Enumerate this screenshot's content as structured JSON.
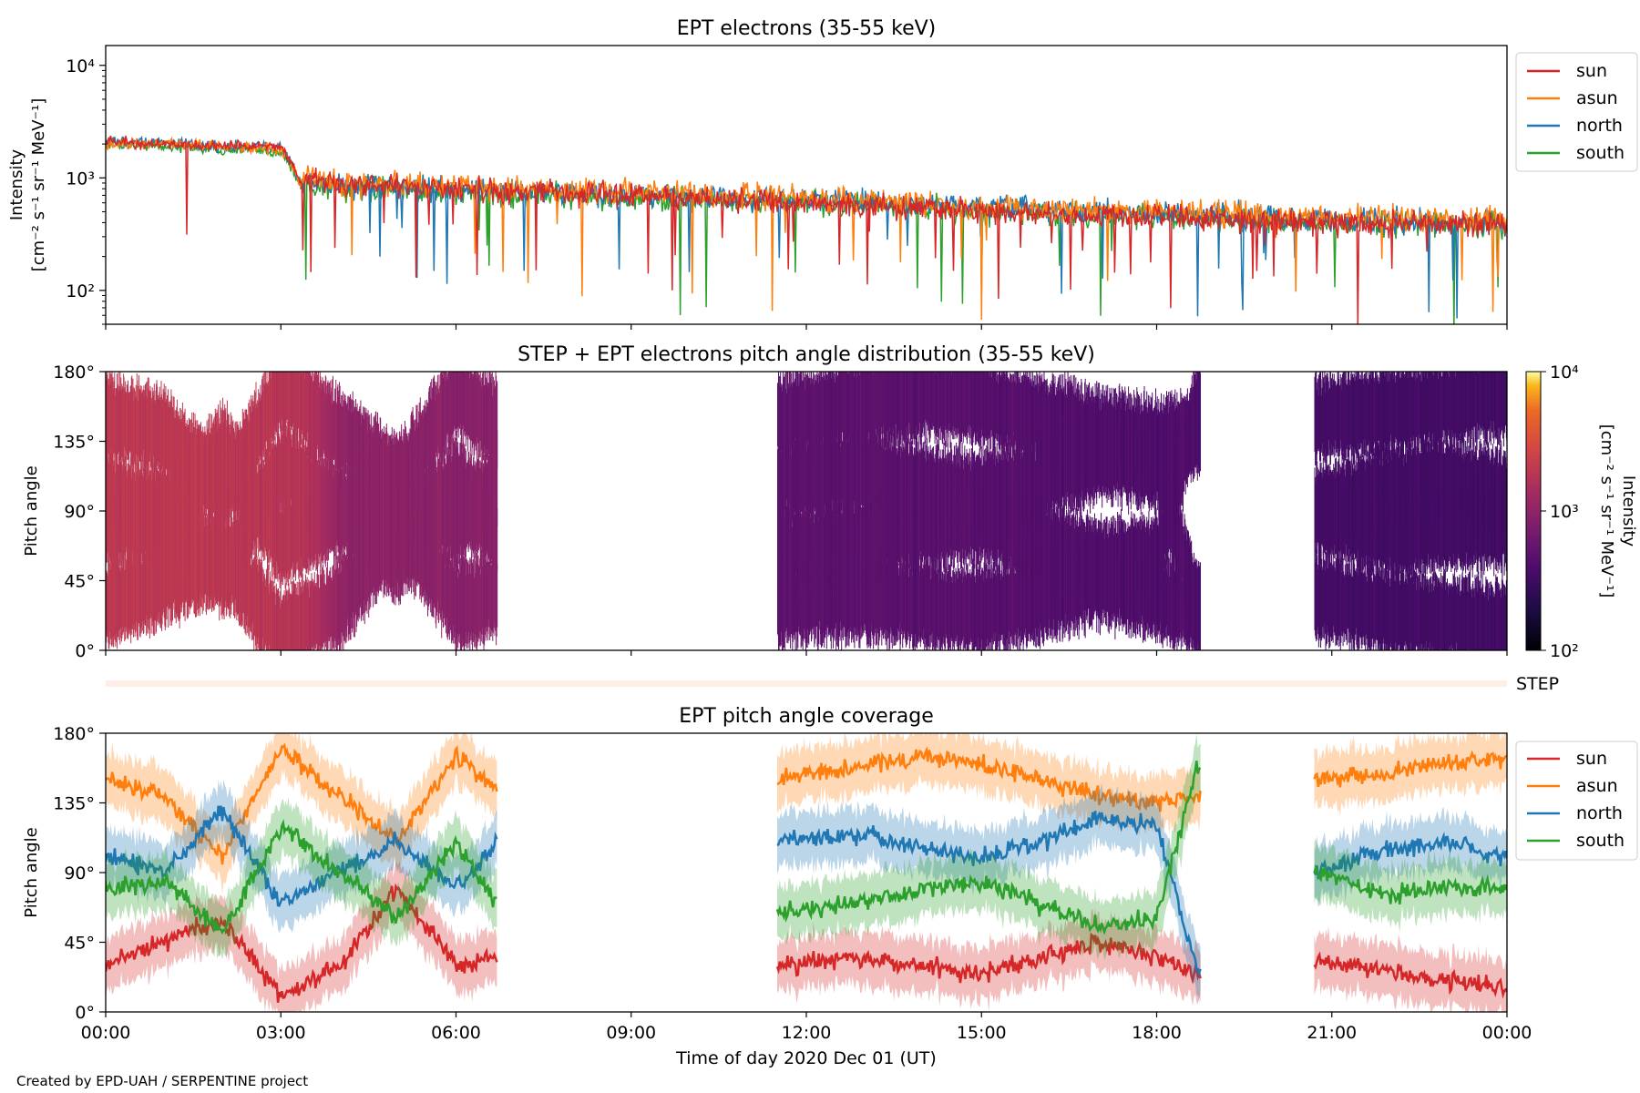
{
  "credit": "Created by EPD-UAH / SERPENTINE project",
  "xaxis": {
    "label": "Time of day 2020 Dec 01 (UT)",
    "range_hours": [
      0,
      24
    ],
    "ticks": [
      0,
      3,
      6,
      9,
      12,
      15,
      18,
      21,
      24
    ],
    "tick_labels": [
      "00:00",
      "03:00",
      "06:00",
      "09:00",
      "12:00",
      "15:00",
      "18:00",
      "21:00",
      "00:00"
    ]
  },
  "colors": {
    "sun": "#d62728",
    "asun": "#ff7f0e",
    "north": "#1f77b4",
    "south": "#2ca02c"
  },
  "chart_data": [
    {
      "type": "line",
      "title": "EPT electrons (35-55 keV)",
      "ylabel_line1": "Intensity",
      "ylabel_line2": "[cm⁻² s⁻¹ sr⁻¹ MeV⁻¹]",
      "yscale": "log",
      "ylim": [
        50,
        15000
      ],
      "ytick_values": [
        100,
        1000,
        10000
      ],
      "ytick_labels": [
        "10²",
        "10³",
        "10⁴"
      ],
      "legend": [
        "sun",
        "asun",
        "north",
        "south"
      ],
      "legend_position": "outside-right",
      "series": [
        {
          "name": "sun",
          "x": [
            0,
            1,
            2,
            3,
            3.3,
            4,
            6,
            9,
            12,
            15,
            18,
            21,
            24
          ],
          "y": [
            2100,
            2000,
            1900,
            1900,
            1000,
            900,
            800,
            700,
            600,
            500,
            450,
            400,
            380
          ]
        },
        {
          "name": "asun",
          "x": [
            0,
            1,
            2,
            3,
            3.3,
            4,
            6,
            9,
            12,
            15,
            18,
            21,
            24
          ],
          "y": [
            2000,
            2000,
            1900,
            1800,
            1000,
            900,
            850,
            750,
            650,
            550,
            500,
            450,
            430
          ]
        },
        {
          "name": "north",
          "x": [
            0,
            1,
            2,
            3,
            3.3,
            4,
            6,
            9,
            12,
            15,
            18,
            21,
            24
          ],
          "y": [
            2100,
            2100,
            1900,
            1900,
            950,
            850,
            800,
            700,
            650,
            550,
            480,
            430,
            400
          ]
        },
        {
          "name": "south",
          "x": [
            0,
            1,
            2,
            3,
            3.3,
            4,
            6,
            9,
            12,
            15,
            18,
            21,
            24
          ],
          "y": [
            2000,
            1900,
            1800,
            1700,
            900,
            800,
            750,
            650,
            600,
            500,
            450,
            400,
            380
          ]
        }
      ]
    },
    {
      "type": "heatmap",
      "title": "STEP + EPT electrons pitch angle distribution (35-55 keV)",
      "ylabel": "Pitch angle",
      "ylim": [
        0,
        180
      ],
      "ytick_values": [
        0,
        45,
        90,
        135,
        180
      ],
      "ytick_labels": [
        "0°",
        "45°",
        "90°",
        "135°",
        "180°"
      ],
      "colorbar": {
        "label_line1": "Intensity",
        "label_line2": "[cm⁻² s⁻¹ sr⁻¹ MeV⁻¹]",
        "scale": "log",
        "range": [
          100,
          10000
        ],
        "tick_labels": [
          "10²",
          "10³",
          "10⁴"
        ],
        "colormap": "inferno"
      },
      "data_segments_hours": [
        [
          0,
          6.7
        ],
        [
          11.5,
          18.75
        ],
        [
          20.7,
          24
        ]
      ],
      "intensity_by_time": {
        "x": [
          0,
          2,
          3.4,
          4,
          6.7,
          11.5,
          15,
          18.75,
          20.7,
          24
        ],
        "y": [
          2000,
          1900,
          1800,
          1000,
          900,
          500,
          450,
          400,
          350,
          340
        ]
      },
      "step_label": "STEP"
    },
    {
      "type": "line",
      "title": "EPT pitch angle coverage",
      "ylabel": "Pitch angle",
      "ylim": [
        0,
        180
      ],
      "ytick_values": [
        0,
        45,
        90,
        135,
        180
      ],
      "ytick_labels": [
        "0°",
        "45°",
        "90°",
        "135°",
        "180°"
      ],
      "legend": [
        "sun",
        "asun",
        "north",
        "south"
      ],
      "legend_position": "outside-right",
      "segments_hours": [
        [
          0,
          6.7
        ],
        [
          11.5,
          18.75
        ],
        [
          20.7,
          24
        ]
      ],
      "series": [
        {
          "name": "sun",
          "x": [
            0,
            1,
            2,
            3,
            4,
            5,
            6,
            6.7,
            11.5,
            13,
            14,
            15,
            16,
            17,
            18,
            18.7,
            20.7,
            22,
            23,
            24
          ],
          "y": [
            30,
            45,
            60,
            10,
            30,
            80,
            30,
            35,
            30,
            35,
            30,
            25,
            35,
            45,
            35,
            25,
            35,
            25,
            20,
            15
          ]
        },
        {
          "name": "asun",
          "x": [
            0,
            1,
            2,
            3,
            4,
            5,
            6,
            6.7,
            11.5,
            13,
            14,
            15,
            16,
            17,
            18,
            18.7,
            20.7,
            22,
            23,
            24
          ],
          "y": [
            150,
            140,
            100,
            170,
            140,
            110,
            165,
            145,
            150,
            160,
            165,
            160,
            150,
            140,
            135,
            140,
            150,
            155,
            160,
            165
          ]
        },
        {
          "name": "north",
          "x": [
            0,
            1,
            2,
            3,
            4,
            5,
            6,
            6.7,
            11.5,
            13,
            14,
            15,
            16,
            17,
            18,
            18.7,
            20.7,
            22,
            23,
            24
          ],
          "y": [
            100,
            90,
            130,
            70,
            90,
            110,
            80,
            110,
            110,
            115,
            105,
            100,
            110,
            125,
            120,
            25,
            90,
            105,
            110,
            100
          ]
        },
        {
          "name": "south",
          "x": [
            0,
            1,
            2,
            3,
            4,
            5,
            6,
            6.7,
            11.5,
            13,
            14,
            15,
            16,
            17,
            18,
            18.7,
            20.7,
            22,
            23,
            24
          ],
          "y": [
            80,
            85,
            50,
            120,
            90,
            60,
            110,
            70,
            65,
            70,
            80,
            85,
            70,
            55,
            60,
            160,
            90,
            75,
            80,
            80
          ]
        }
      ]
    }
  ]
}
